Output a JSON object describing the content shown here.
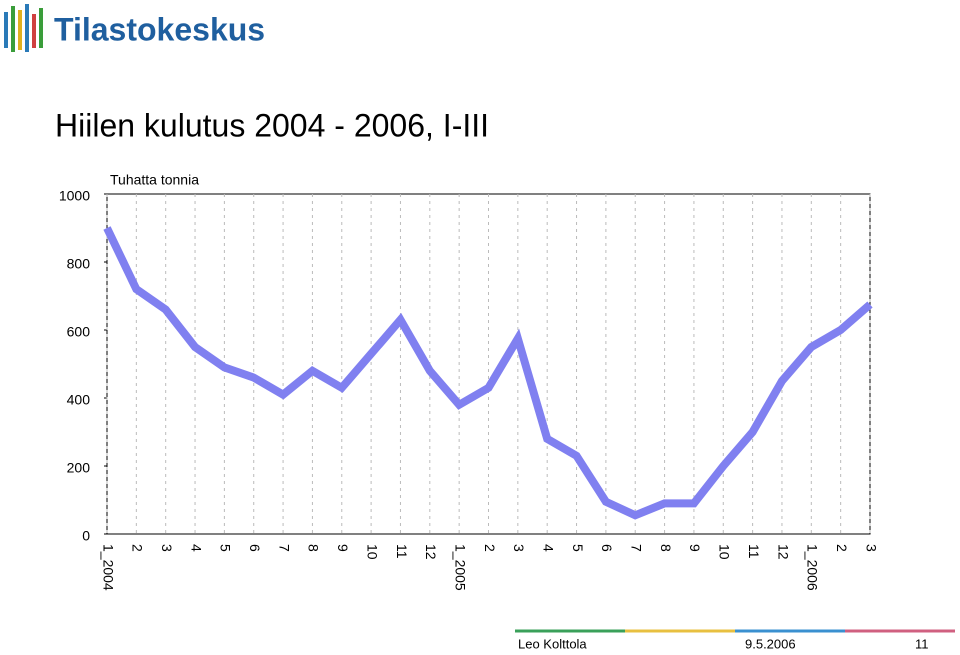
{
  "header": {
    "logo": "Tilastokeskus"
  },
  "chart_data": {
    "type": "line",
    "title": "Hiilen kulutus 2004 - 2006, I-III",
    "y_axis_label": "Tuhatta tonnia",
    "categories": [
      "1_2004",
      "2",
      "3",
      "4",
      "5",
      "6",
      "7",
      "8",
      "9",
      "10",
      "11",
      "12",
      "1_2005",
      "2",
      "3",
      "4",
      "5",
      "6",
      "7",
      "8",
      "9",
      "10",
      "11",
      "12",
      "1_2006",
      "2",
      "3"
    ],
    "values": [
      900,
      720,
      660,
      550,
      490,
      460,
      410,
      480,
      430,
      530,
      630,
      480,
      380,
      430,
      575,
      280,
      230,
      95,
      55,
      90,
      90,
      200,
      300,
      450,
      550,
      600,
      675
    ],
    "color": "#8080f0",
    "ylim": [
      0,
      1000
    ],
    "yticks": [
      0,
      200,
      400,
      600,
      800,
      1000
    ],
    "grid": true
  },
  "footer": {
    "author": "Leo Kolttola",
    "date": "9.5.2006",
    "page": "11"
  }
}
